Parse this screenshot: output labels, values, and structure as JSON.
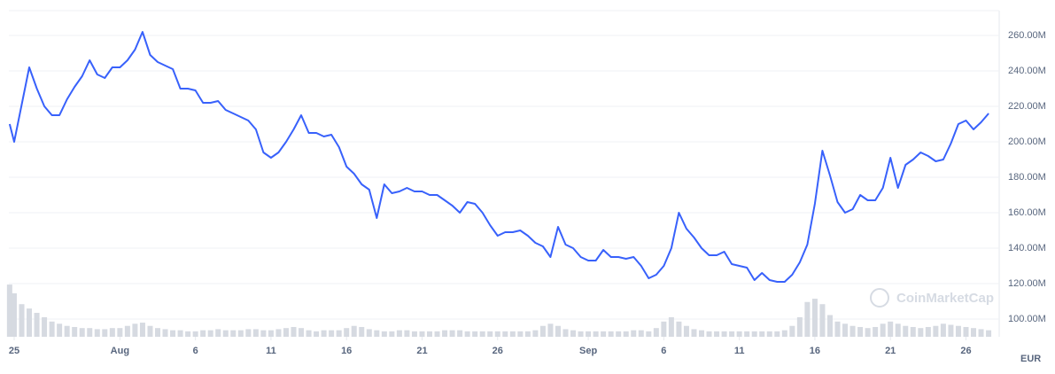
{
  "chart_data": {
    "type": "line",
    "x": [
      -0.3,
      0,
      0.5,
      1,
      1.5,
      2,
      2.5,
      3,
      3.5,
      4,
      4.5,
      5,
      5.5,
      6,
      6.5,
      7,
      7.5,
      8,
      8.5,
      9,
      9.5,
      10,
      10.5,
      11,
      11.5,
      12,
      12.5,
      13,
      13.5,
      14,
      14.5,
      15,
      15.5,
      16,
      16.5,
      17,
      17.5,
      18,
      18.5,
      19,
      19.5,
      20,
      20.5,
      21,
      21.5,
      22,
      22.5,
      23,
      23.5,
      24,
      24.5,
      25,
      25.5,
      26,
      26.5,
      27,
      27.5,
      28,
      28.5,
      29,
      29.5,
      30,
      30.5,
      31,
      31.5,
      32,
      32.5,
      33,
      33.5,
      34,
      34.5,
      35,
      35.5,
      36,
      36.5,
      37,
      37.5,
      38,
      38.5,
      39,
      39.5,
      40,
      40.5,
      41,
      41.5,
      42,
      42.5,
      43,
      43.5,
      44,
      44.5,
      45,
      45.5,
      46,
      46.5,
      47,
      47.5,
      48,
      48.5,
      49,
      49.5,
      50,
      50.5,
      51,
      51.5,
      52,
      52.5,
      53,
      53.5,
      54,
      54.5,
      55,
      55.5,
      56,
      56.5,
      57,
      57.5,
      58,
      58.5,
      59,
      59.5,
      60,
      60.5,
      61,
      61.5,
      62,
      62.5,
      63,
      63.5,
      64,
      64.5
    ],
    "series": [
      {
        "color": "#3861fb",
        "values": [
          210,
          200,
          221,
          242,
          230,
          220,
          215,
          215,
          224,
          231,
          237,
          246,
          238,
          236,
          242,
          242,
          246,
          252,
          262,
          249,
          245,
          243,
          241,
          230,
          230,
          229,
          222,
          222,
          223,
          218,
          216,
          214,
          212,
          207,
          194,
          191,
          194,
          200,
          207,
          215,
          205,
          205,
          203,
          204,
          197,
          186,
          182,
          176,
          173,
          157,
          176,
          171,
          172,
          174,
          172,
          172,
          170,
          170,
          167,
          164,
          160,
          166,
          165,
          160,
          153,
          147,
          149,
          149,
          150,
          147,
          143,
          141,
          135,
          152,
          142,
          140,
          135,
          133,
          133,
          139,
          135,
          135,
          134,
          135,
          130,
          123,
          125,
          130,
          140,
          160,
          151,
          146,
          140,
          136,
          136,
          138,
          131,
          130,
          129,
          122,
          126,
          122,
          121,
          121,
          125,
          132,
          142,
          165,
          195,
          181,
          166,
          160,
          162,
          170,
          167,
          167,
          174,
          191,
          174,
          187,
          190,
          194,
          192,
          189,
          190,
          199,
          210,
          212,
          207,
          211,
          216
        ]
      },
      {
        "color": "#d6dae1",
        "axis": "y2",
        "values": [
          48,
          40,
          30,
          26,
          22,
          18,
          14,
          12,
          10,
          9,
          8,
          8,
          7,
          7,
          8,
          8,
          10,
          12,
          13,
          10,
          8,
          7,
          6,
          6,
          5,
          5,
          6,
          6,
          7,
          6,
          6,
          6,
          7,
          7,
          6,
          6,
          7,
          8,
          9,
          8,
          6,
          5,
          6,
          6,
          6,
          8,
          10,
          9,
          7,
          6,
          5,
          5,
          6,
          6,
          5,
          5,
          5,
          5,
          6,
          6,
          6,
          5,
          5,
          5,
          5,
          5,
          5,
          5,
          5,
          5,
          6,
          10,
          12,
          10,
          7,
          6,
          5,
          5,
          5,
          5,
          5,
          5,
          5,
          6,
          6,
          5,
          8,
          14,
          18,
          14,
          10,
          7,
          6,
          5,
          5,
          5,
          5,
          5,
          5,
          5,
          5,
          5,
          5,
          6,
          10,
          18,
          32,
          35,
          30,
          20,
          14,
          12,
          10,
          9,
          8,
          9,
          12,
          14,
          12,
          10,
          9,
          8,
          9,
          10,
          12,
          11,
          10,
          9,
          8,
          7,
          6
        ]
      }
    ],
    "xlim": [
      -0.35,
      65.2
    ],
    "xticks": [
      {
        "value": 0,
        "label": "25"
      },
      {
        "value": 7,
        "label": "Aug"
      },
      {
        "value": 12,
        "label": "6"
      },
      {
        "value": 17,
        "label": "11"
      },
      {
        "value": 22,
        "label": "16"
      },
      {
        "value": 27,
        "label": "21"
      },
      {
        "value": 32,
        "label": "26"
      },
      {
        "value": 38,
        "label": "Sep"
      },
      {
        "value": 43,
        "label": "6"
      },
      {
        "value": 48,
        "label": "11"
      },
      {
        "value": 53,
        "label": "16"
      },
      {
        "value": 58,
        "label": "21"
      },
      {
        "value": 63,
        "label": "26"
      }
    ],
    "ylim": [
      90,
      274
    ],
    "yticks": [
      {
        "value": 100,
        "label": "100.00M"
      },
      {
        "value": 120,
        "label": "120.00M"
      },
      {
        "value": 140,
        "label": "140.00M"
      },
      {
        "value": 160,
        "label": "160.00M"
      },
      {
        "value": 180,
        "label": "180.00M"
      },
      {
        "value": 200,
        "label": "200.00M"
      },
      {
        "value": 220,
        "label": "220.00M"
      },
      {
        "value": 240,
        "label": "240.00M"
      },
      {
        "value": 260,
        "label": "260.00M"
      }
    ],
    "y2lim": [
      0,
      300
    ],
    "grid": true,
    "watermark": "CoinMarketCap",
    "currency_label": "EUR"
  }
}
